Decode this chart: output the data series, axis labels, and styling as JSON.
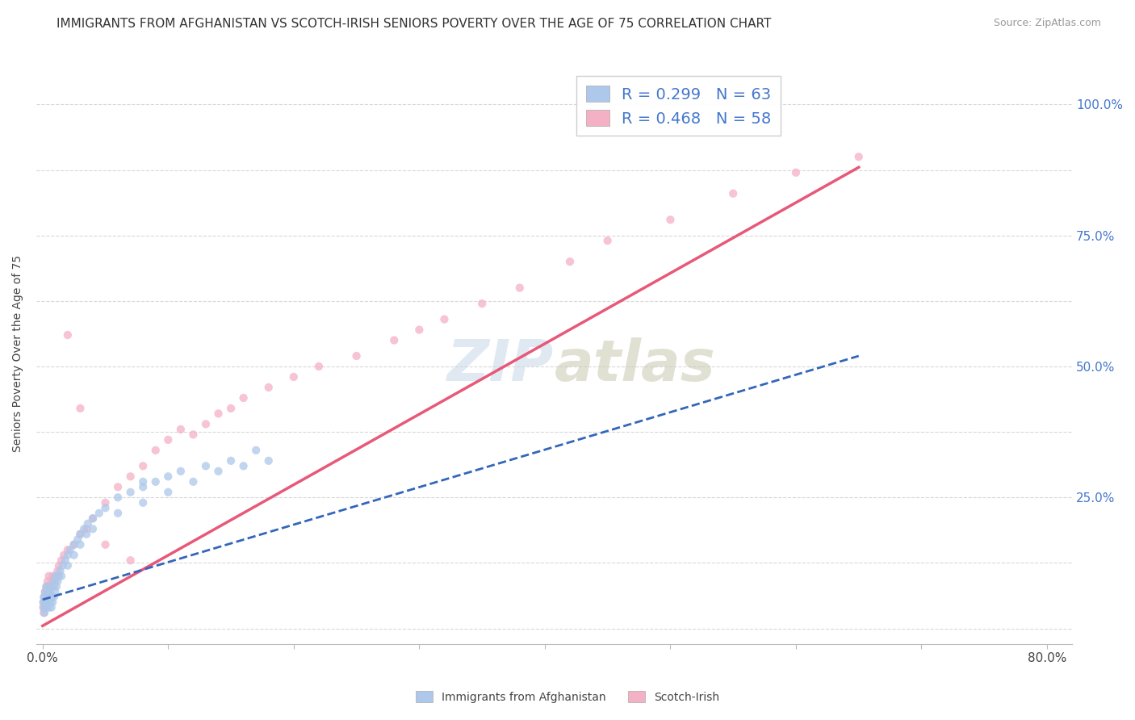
{
  "title": "IMMIGRANTS FROM AFGHANISTAN VS SCOTCH-IRISH SENIORS POVERTY OVER THE AGE OF 75 CORRELATION CHART",
  "source": "Source: ZipAtlas.com",
  "ylabel": "Seniors Poverty Over the Age of 75",
  "legend_entries": [
    {
      "label": "Immigrants from Afghanistan",
      "color": "#adc8ea",
      "R": 0.299,
      "N": 63
    },
    {
      "label": "Scotch-Irish",
      "color": "#f4b0c4",
      "R": 0.468,
      "N": 58
    }
  ],
  "watermark": "ZIPAtlas",
  "blue_scatter_x": [
    0.0005,
    0.001,
    0.001,
    0.0015,
    0.002,
    0.002,
    0.003,
    0.003,
    0.003,
    0.004,
    0.004,
    0.005,
    0.005,
    0.005,
    0.006,
    0.006,
    0.007,
    0.007,
    0.008,
    0.008,
    0.009,
    0.009,
    0.01,
    0.01,
    0.011,
    0.012,
    0.013,
    0.014,
    0.015,
    0.016,
    0.018,
    0.02,
    0.022,
    0.025,
    0.028,
    0.03,
    0.033,
    0.036,
    0.04,
    0.045,
    0.05,
    0.06,
    0.07,
    0.08,
    0.09,
    0.1,
    0.11,
    0.13,
    0.15,
    0.17,
    0.02,
    0.025,
    0.03,
    0.035,
    0.04,
    0.06,
    0.08,
    0.1,
    0.12,
    0.14,
    0.16,
    0.18,
    0.08
  ],
  "blue_scatter_y": [
    0.05,
    0.04,
    0.06,
    0.03,
    0.05,
    0.07,
    0.04,
    0.06,
    0.08,
    0.05,
    0.07,
    0.04,
    0.06,
    0.08,
    0.05,
    0.07,
    0.04,
    0.06,
    0.05,
    0.08,
    0.06,
    0.09,
    0.07,
    0.1,
    0.08,
    0.09,
    0.1,
    0.11,
    0.1,
    0.12,
    0.13,
    0.14,
    0.15,
    0.16,
    0.17,
    0.18,
    0.19,
    0.2,
    0.21,
    0.22,
    0.23,
    0.25,
    0.26,
    0.27,
    0.28,
    0.29,
    0.3,
    0.31,
    0.32,
    0.34,
    0.12,
    0.14,
    0.16,
    0.18,
    0.19,
    0.22,
    0.24,
    0.26,
    0.28,
    0.3,
    0.31,
    0.32,
    0.28
  ],
  "pink_scatter_x": [
    0.0005,
    0.001,
    0.001,
    0.0015,
    0.002,
    0.002,
    0.003,
    0.003,
    0.004,
    0.004,
    0.005,
    0.005,
    0.006,
    0.007,
    0.008,
    0.009,
    0.01,
    0.011,
    0.012,
    0.013,
    0.015,
    0.017,
    0.02,
    0.025,
    0.03,
    0.035,
    0.04,
    0.05,
    0.06,
    0.07,
    0.08,
    0.09,
    0.1,
    0.11,
    0.12,
    0.13,
    0.14,
    0.15,
    0.16,
    0.18,
    0.2,
    0.22,
    0.25,
    0.28,
    0.3,
    0.32,
    0.35,
    0.38,
    0.42,
    0.45,
    0.5,
    0.55,
    0.6,
    0.65,
    0.02,
    0.03,
    0.05,
    0.07
  ],
  "pink_scatter_y": [
    0.04,
    0.05,
    0.03,
    0.06,
    0.04,
    0.07,
    0.05,
    0.08,
    0.06,
    0.09,
    0.07,
    0.1,
    0.08,
    0.09,
    0.1,
    0.08,
    0.09,
    0.1,
    0.11,
    0.12,
    0.13,
    0.14,
    0.15,
    0.16,
    0.18,
    0.19,
    0.21,
    0.24,
    0.27,
    0.29,
    0.31,
    0.34,
    0.36,
    0.38,
    0.37,
    0.39,
    0.41,
    0.42,
    0.44,
    0.46,
    0.48,
    0.5,
    0.52,
    0.55,
    0.57,
    0.59,
    0.62,
    0.65,
    0.7,
    0.74,
    0.78,
    0.83,
    0.87,
    0.9,
    0.56,
    0.42,
    0.16,
    0.13
  ],
  "blue_line_x": [
    0.0,
    0.65
  ],
  "blue_line_y": [
    0.055,
    0.52
  ],
  "pink_line_x": [
    0.0,
    0.65
  ],
  "pink_line_y": [
    0.005,
    0.88
  ],
  "xlim": [
    -0.005,
    0.82
  ],
  "ylim": [
    -0.03,
    1.08
  ],
  "x_ticks": [
    0.0,
    0.1,
    0.2,
    0.3,
    0.4,
    0.5,
    0.6,
    0.7,
    0.8
  ],
  "x_tick_labels": [
    "0.0%",
    "",
    "",
    "",
    "",
    "",
    "",
    "",
    "80.0%"
  ],
  "y_ticks": [
    0.0,
    0.125,
    0.25,
    0.375,
    0.5,
    0.625,
    0.75,
    0.875,
    1.0
  ],
  "y_tick_labels_right": [
    "",
    "",
    "25.0%",
    "",
    "50.0%",
    "",
    "75.0%",
    "",
    "100.0%"
  ],
  "background_color": "#ffffff",
  "grid_color": "#d8d8d8",
  "scatter_size": 55,
  "blue_color": "#adc8ea",
  "pink_color": "#f4b0c4",
  "blue_line_color": "#3366bb",
  "pink_line_color": "#e85878",
  "title_fontsize": 11,
  "axis_label_fontsize": 10,
  "tick_fontsize": 11,
  "legend_fontsize": 14,
  "right_tick_color": "#4477cc"
}
